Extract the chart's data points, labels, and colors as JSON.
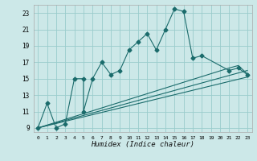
{
  "xlabel": "Humidex (Indice chaleur)",
  "bg_color": "#cce8e8",
  "grid_color": "#99cccc",
  "line_color": "#1a6b6b",
  "xlim": [
    -0.5,
    23.5
  ],
  "ylim": [
    8.5,
    24.0
  ],
  "xticks": [
    0,
    1,
    2,
    3,
    4,
    5,
    6,
    7,
    8,
    9,
    10,
    11,
    12,
    13,
    14,
    15,
    16,
    17,
    18,
    19,
    20,
    21,
    22,
    23
  ],
  "yticks": [
    9,
    11,
    13,
    15,
    17,
    19,
    21,
    23
  ],
  "curve1_x": [
    0,
    1,
    2,
    3,
    4,
    5,
    5,
    6,
    7,
    8,
    9,
    10,
    11,
    12,
    13,
    14,
    15,
    16,
    17,
    18,
    21,
    22,
    23
  ],
  "curve1_y": [
    9,
    12,
    9,
    9.5,
    15,
    15,
    11,
    15,
    17,
    15.5,
    16,
    18.5,
    19.5,
    20.5,
    18.5,
    21,
    23.5,
    23.2,
    17.5,
    17.8,
    16,
    16.3,
    15.5
  ],
  "line1_x": [
    0,
    23
  ],
  "line1_y": [
    9,
    15.2
  ],
  "line2_x": [
    0,
    23
  ],
  "line2_y": [
    9,
    16.0
  ],
  "line3_x": [
    0,
    21,
    22,
    23
  ],
  "line3_y": [
    9,
    16.3,
    16.6,
    15.6
  ]
}
